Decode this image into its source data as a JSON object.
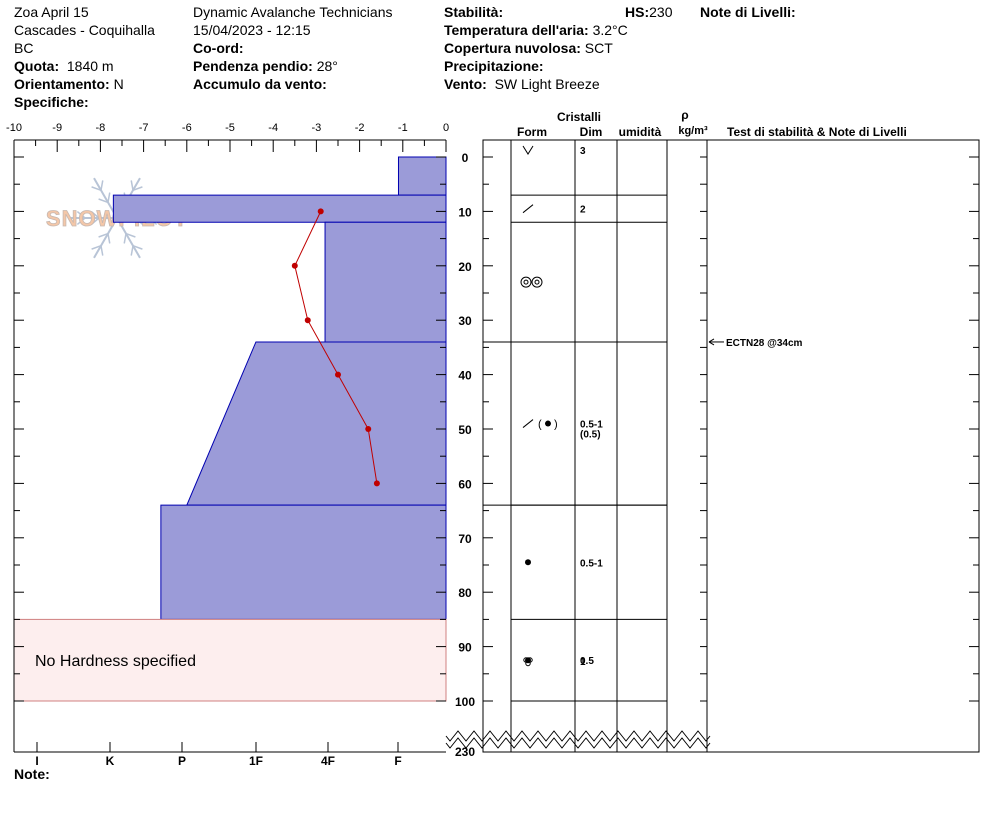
{
  "header": {
    "location": "Zoa April 15",
    "range": "Cascades - Coquihalla",
    "province": "BC",
    "elevation_label": "Quota:",
    "elevation_value": "1840 m",
    "aspect_label": "Orientamento:",
    "aspect_value": "N",
    "specifics_label": "Specifiche:",
    "organization": "Dynamic Avalanche Technicians",
    "datetime": "15/04/2023 - 12:15",
    "coords_label": "Co-ord:",
    "slope_label": "Pendenza pendio:",
    "slope_value": "28°",
    "wind_loading_label": "Accumulo da vento:",
    "stability_label": "Stabilità:",
    "hs_label": "HS:",
    "hs_value": "230",
    "air_temp_label": "Temperatura dell'aria:",
    "air_temp_value": "3.2°C",
    "sky_label": "Copertura nuvolosa:",
    "sky_value": "SCT",
    "precip_label": "Precipitazione:",
    "wind_label": "Vento:",
    "wind_value": "SW Light Breeze",
    "layer_notes_label": "Note di Livelli:"
  },
  "columns": {
    "crystals": "Cristalli",
    "form": "Form",
    "size": "Dim",
    "moisture": "umidità",
    "rho": "ρ",
    "density_unit": "kg/m³",
    "tests": "Test di stabilità & Note di Livelli"
  },
  "watermark": "SNOWPILOT",
  "note_label": "Note:",
  "colors": {
    "layer_fill": "#9b9bd8",
    "layer_stroke": "#0000b0",
    "temp_line": "#c00000",
    "no_hardness_fill": "#fdeeee",
    "no_hardness_stroke": "#d08080"
  },
  "chart_data": {
    "type": "area",
    "temperature_axis": {
      "ticks": [
        "-10",
        "-9",
        "-8",
        "-7",
        "-6",
        "-5",
        "-4",
        "-3",
        "-2",
        "-1",
        "0"
      ],
      "range": [
        -10,
        0
      ]
    },
    "depth_axis": {
      "ticks": [
        "0",
        "10",
        "20",
        "30",
        "40",
        "50",
        "60",
        "70",
        "80",
        "90",
        "100"
      ],
      "bottom_label": "230",
      "range": [
        0,
        100
      ]
    },
    "hardness_axis": {
      "ticks": [
        "I",
        "K",
        "P",
        "1F",
        "4F",
        "F"
      ]
    },
    "layers": [
      {
        "top": 0,
        "bottom": 7,
        "hardness_top": -1.1,
        "hardness_bottom": -1.1,
        "form": "ice-crust",
        "size": "3"
      },
      {
        "top": 7,
        "bottom": 12,
        "hardness_top": -7.7,
        "hardness_bottom": -7.7,
        "form": "decomposing",
        "size": "2"
      },
      {
        "top": 12,
        "bottom": 34,
        "hardness_top": -2.8,
        "hardness_bottom": -2.8,
        "form": "clustered-rounded",
        "size": ""
      },
      {
        "top": 34,
        "bottom": 64,
        "hardness_top": -4.4,
        "hardness_bottom": -6.0,
        "form": "decomposing-rounded",
        "size": "0.5-1",
        "size_note": "(0.5)"
      },
      {
        "top": 64,
        "bottom": 85,
        "hardness_top": -6.6,
        "hardness_bottom": -6.6,
        "form": "rounded",
        "size": "0.5-1"
      },
      {
        "top": 85,
        "bottom": 100,
        "hardness_top": null,
        "hardness_bottom": null,
        "form": "rounded",
        "size": "0.5"
      }
    ],
    "crystal_rows": [
      {
        "top": 0,
        "bottom": 7,
        "form": "ice-crust",
        "size": "3"
      },
      {
        "top": 7,
        "bottom": 12,
        "form": "decomposing",
        "size": "2"
      },
      {
        "top": 12,
        "bottom": 34,
        "form": "clustered-rounded",
        "size": ""
      },
      {
        "top": 34,
        "bottom": 64,
        "form": "decomposing-rounded",
        "size": "0.5-1",
        "size_note": "(0.5)"
      },
      {
        "top": 64,
        "bottom": 85,
        "form": "rounded",
        "size": "0.5-1"
      },
      {
        "top": 85,
        "bottom": 100,
        "form": "rounded",
        "size": "0.5"
      },
      {
        "top": 100,
        "bottom": 230,
        "form": "melt-cluster",
        "size": "1"
      }
    ],
    "no_hardness": {
      "top": 85,
      "bottom": 100,
      "label": "No Hardness specified"
    },
    "temperature_profile": [
      {
        "depth": 10,
        "temp": -2.9
      },
      {
        "depth": 20,
        "temp": -3.5
      },
      {
        "depth": 30,
        "temp": -3.2
      },
      {
        "depth": 40,
        "temp": -2.5
      },
      {
        "depth": 50,
        "temp": -1.8
      },
      {
        "depth": 60,
        "temp": -1.6
      }
    ],
    "tests": [
      {
        "depth": 34,
        "label": "ECTN28 @34cm"
      }
    ]
  }
}
